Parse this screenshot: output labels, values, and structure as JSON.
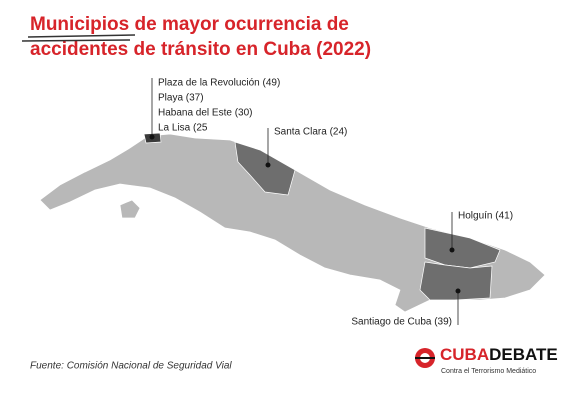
{
  "header": {
    "title": [
      "Municipios de mayor ocurrencia de",
      "accidentes de tránsito en Cuba (2022)"
    ]
  },
  "annotations": {
    "havana": [
      "Plaza de la Revolución (49)",
      "Playa (37)",
      "Habana del Este (30)",
      "La Lisa (25"
    ],
    "santa_clara": "Santa Clara (24)",
    "holguin": "Holguín (41)",
    "santiago": "Santiago de Cuba (39)"
  },
  "source": "Fuente: Comisión Nacional de Seguridad Vial",
  "logo": {
    "part1": "CUBA",
    "part2": "DEBATE",
    "tagline": "Contra el Terrorismo Mediático"
  }
}
